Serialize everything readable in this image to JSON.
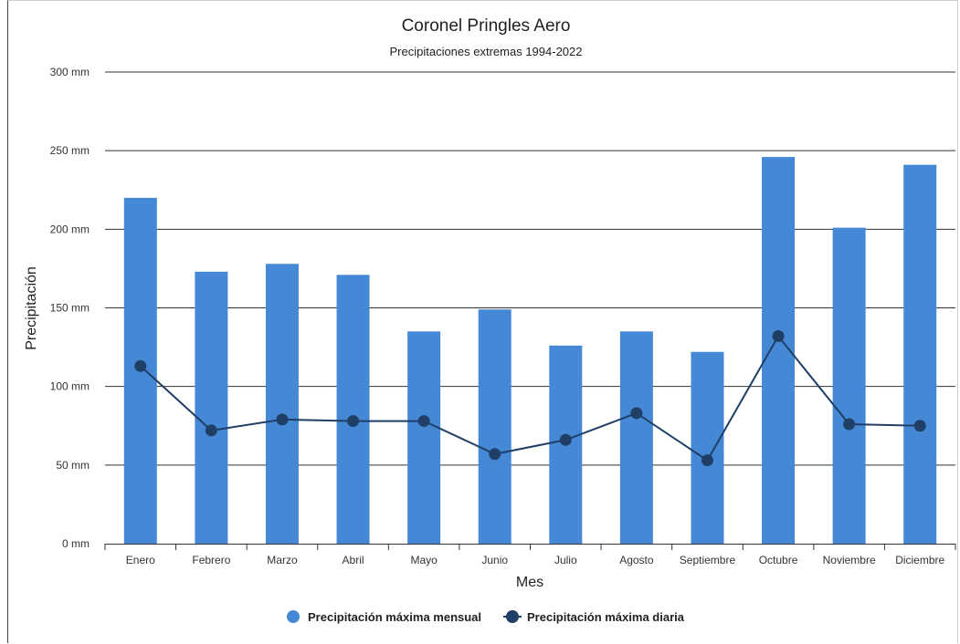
{
  "chart_data": {
    "type": "bar",
    "title": "Coronel Pringles Aero",
    "subtitle": "Precipitaciones extremas 1994-2022",
    "xlabel": "Mes",
    "ylabel": "Precipitación",
    "ylim": [
      0,
      300
    ],
    "yticks": [
      "0 mm",
      "50 mm",
      "100 mm",
      "150 mm",
      "200 mm",
      "250 mm",
      "300 mm"
    ],
    "ytick_values": [
      0,
      50,
      100,
      150,
      200,
      250,
      300
    ],
    "grid": true,
    "legend_position": "bottom",
    "categories": [
      "Enero",
      "Febrero",
      "Marzo",
      "Abril",
      "Mayo",
      "Junio",
      "Julio",
      "Agosto",
      "Septiembre",
      "Octubre",
      "Noviembre",
      "Diciembre"
    ],
    "series": [
      {
        "name": "Precipitación máxima mensual",
        "type": "bar",
        "color": "#4589d6",
        "values": [
          220,
          173,
          178,
          171,
          135,
          149,
          126,
          135,
          122,
          246,
          201,
          241
        ]
      },
      {
        "name": "Precipitación máxima diaria",
        "type": "line",
        "color": "#1f3f66",
        "values": [
          113,
          72,
          79,
          78,
          78,
          57,
          66,
          83,
          53,
          132,
          76,
          75
        ]
      }
    ]
  }
}
